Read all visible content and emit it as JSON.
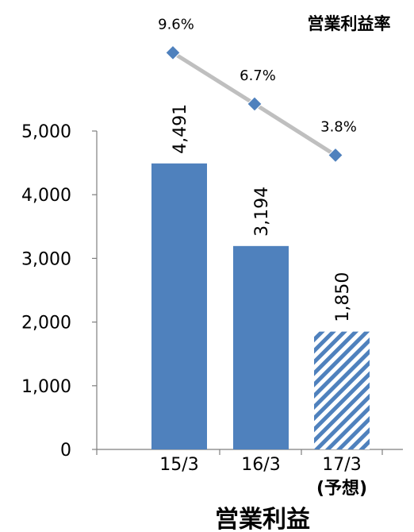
{
  "chart_data": {
    "type": "bar",
    "title": "営業利益",
    "secondary_title": "営業利益率",
    "categories": [
      "15/3",
      "16/3",
      "17/3"
    ],
    "category_notes": [
      "",
      "",
      "(予想)"
    ],
    "values": [
      4491,
      3194,
      1850
    ],
    "value_labels": [
      "4,491",
      "3,194",
      "1,850"
    ],
    "forecast": [
      false,
      false,
      true
    ],
    "ylim": [
      0,
      5000
    ],
    "yticks": [
      0,
      1000,
      2000,
      3000,
      4000,
      5000
    ],
    "ytick_labels": [
      "0",
      "1,000",
      "2,000",
      "3,000",
      "4,000",
      "5,000"
    ],
    "line_series": {
      "name": "営業利益率",
      "values": [
        9.6,
        6.7,
        3.8
      ],
      "labels": [
        "9.6%",
        "6.7%",
        "3.8%"
      ]
    },
    "colors": {
      "bar": "#4f81bd",
      "marker": "#4f81bd",
      "line": "#bfbfbf",
      "axis": "#7f7f7f"
    }
  }
}
